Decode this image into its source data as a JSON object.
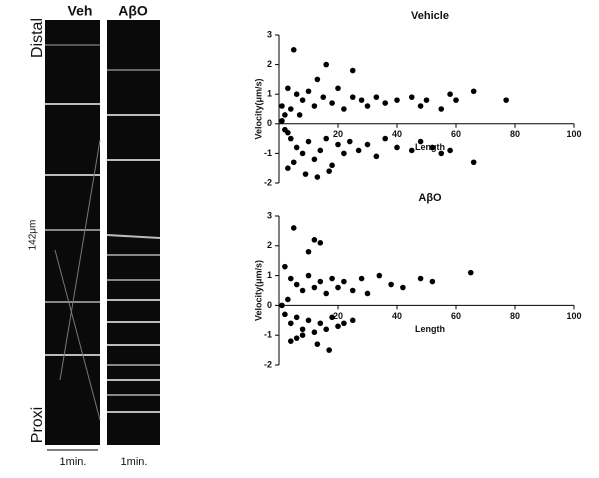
{
  "kymograph": {
    "left_title": "Veh",
    "right_title": "AβO",
    "top_label": "Distal",
    "bottom_label": "Proxi",
    "length_label": "142μm",
    "left_time": "1min.",
    "right_time": "1min."
  },
  "chart_data": [
    {
      "type": "scatter",
      "title": "Vehicle",
      "x_label": "Length",
      "y_label": "Velocity(μm/s)",
      "color": "#000000",
      "x": [
        5,
        16,
        13,
        25,
        3,
        6,
        8,
        10,
        12,
        15,
        18,
        20,
        22,
        25,
        28,
        30,
        33,
        36,
        40,
        45,
        48,
        50,
        55,
        58,
        60,
        66,
        77,
        2,
        4,
        7,
        1,
        2,
        4,
        6,
        8,
        10,
        12,
        14,
        16,
        18,
        20,
        22,
        24,
        27,
        30,
        33,
        36,
        40,
        45,
        48,
        52,
        55,
        58,
        66,
        3,
        5,
        9,
        13,
        17,
        3,
        1
      ],
      "values": [
        2.5,
        2.0,
        1.5,
        1.8,
        1.2,
        1.0,
        0.8,
        1.1,
        0.6,
        0.9,
        0.7,
        1.2,
        0.5,
        0.9,
        0.8,
        0.6,
        0.9,
        0.7,
        0.8,
        0.9,
        0.6,
        0.8,
        0.5,
        1.0,
        0.8,
        1.1,
        0.8,
        0.3,
        0.5,
        0.3,
        0.1,
        -0.2,
        -0.5,
        -0.8,
        -1.0,
        -0.6,
        -1.2,
        -0.9,
        -0.5,
        -1.4,
        -0.7,
        -1.0,
        -0.6,
        -0.9,
        -0.7,
        -1.1,
        -0.5,
        -0.8,
        -0.9,
        -0.6,
        -0.8,
        -1.0,
        -0.9,
        -1.3,
        -1.5,
        -1.3,
        -1.7,
        -1.8,
        -1.6,
        -0.3,
        0.6
      ],
      "xlim": [
        0,
        100
      ],
      "xticks": [
        20,
        40,
        60,
        80,
        100
      ],
      "ylim": [
        -2,
        3
      ],
      "yticks": [
        -2,
        -1,
        0,
        1,
        2,
        3
      ]
    },
    {
      "type": "scatter",
      "title": "AβO",
      "x_label": "Length",
      "y_label": "Velocity(μm/s)",
      "color": "#000000",
      "x": [
        5,
        12,
        10,
        14,
        2,
        4,
        6,
        8,
        10,
        12,
        14,
        16,
        18,
        20,
        22,
        25,
        28,
        30,
        34,
        38,
        42,
        48,
        52,
        65,
        3,
        1,
        2,
        4,
        6,
        8,
        10,
        12,
        14,
        16,
        18,
        20,
        22,
        25,
        4,
        8,
        13,
        17,
        6
      ],
      "values": [
        2.6,
        2.2,
        1.8,
        2.1,
        1.3,
        0.9,
        0.7,
        0.5,
        1.0,
        0.6,
        0.8,
        0.4,
        0.9,
        0.6,
        0.8,
        0.5,
        0.9,
        0.4,
        1.0,
        0.7,
        0.6,
        0.9,
        0.8,
        1.1,
        0.2,
        0.0,
        -0.3,
        -0.6,
        -0.4,
        -0.8,
        -0.5,
        -0.9,
        -0.6,
        -0.8,
        -0.4,
        -0.7,
        -0.6,
        -0.5,
        -1.2,
        -1.0,
        -1.3,
        -1.5,
        -1.1
      ],
      "xlim": [
        0,
        100
      ],
      "xticks": [
        20,
        40,
        60,
        80,
        100
      ],
      "ylim": [
        -2,
        3
      ],
      "yticks": [
        -2,
        -1,
        0,
        1,
        2,
        3
      ]
    }
  ]
}
